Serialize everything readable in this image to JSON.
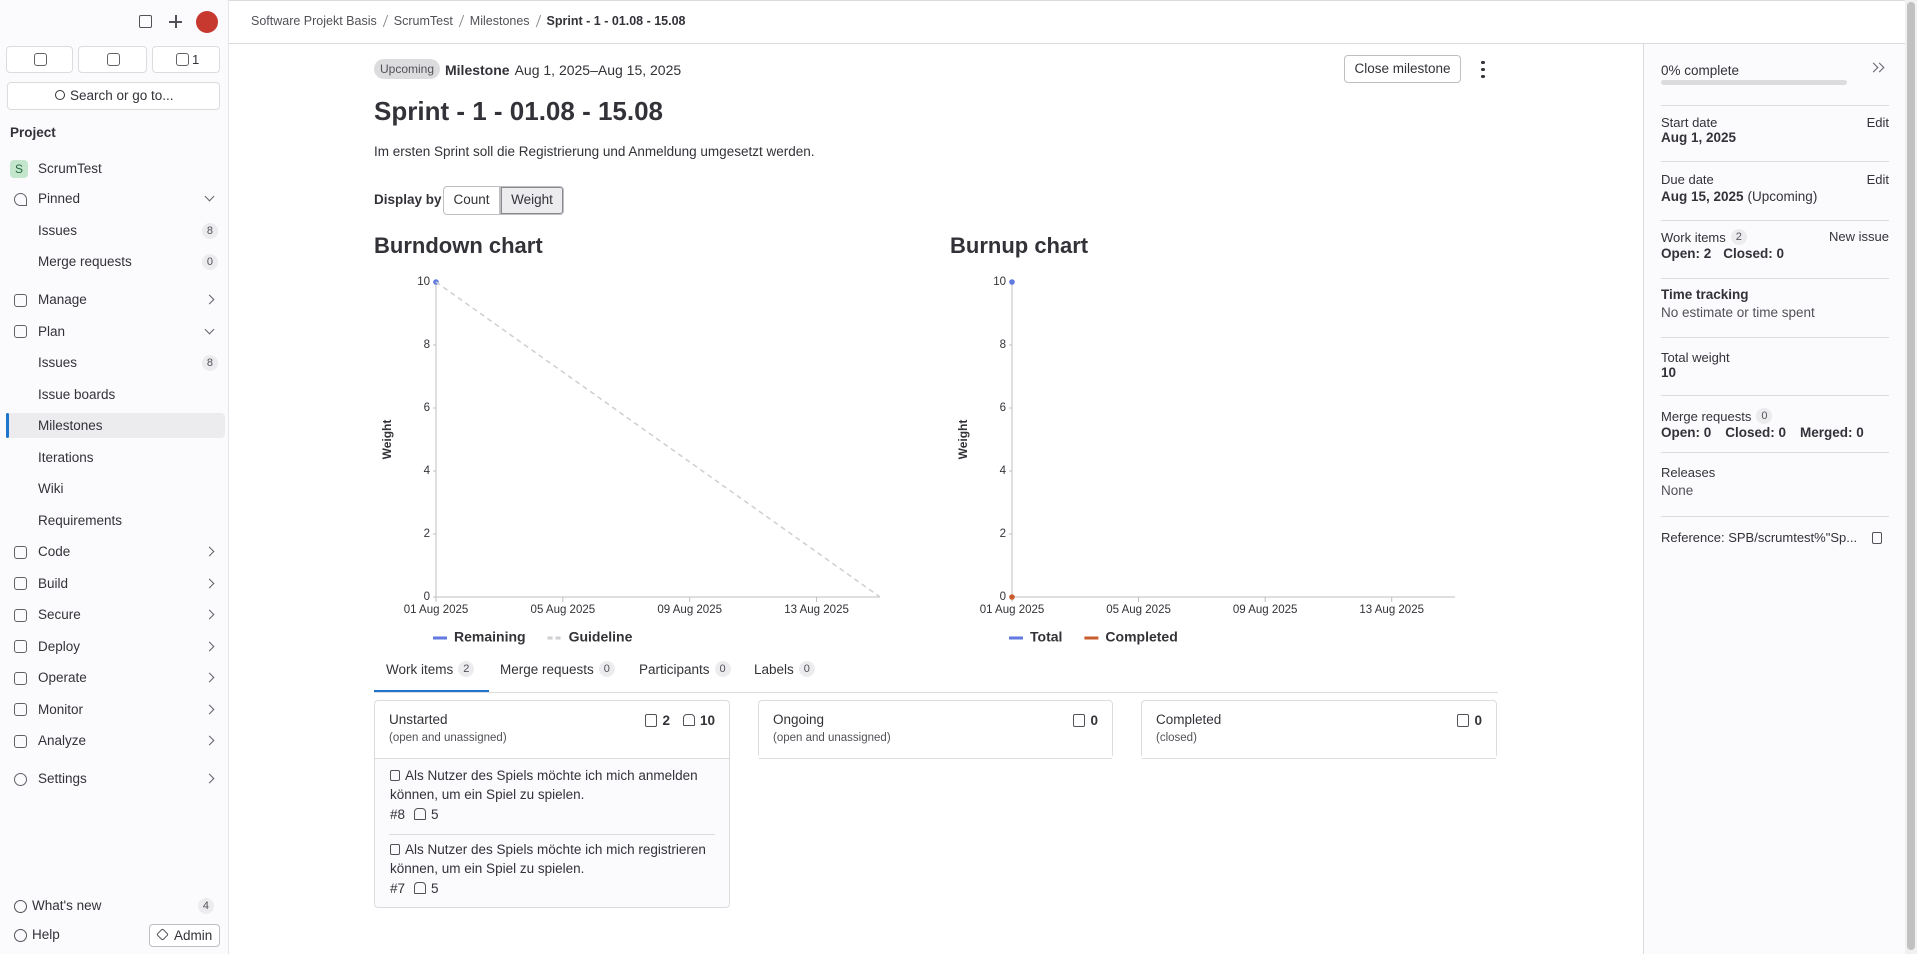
{
  "breadcrumb": [
    "Software Projekt Basis",
    "ScrumTest",
    "Milestones",
    "Sprint - 1 - 01.08 - 15.08"
  ],
  "sidebar": {
    "todo_count": 1,
    "search": "Search or go to...",
    "section": "Project",
    "project": {
      "initial": "S",
      "name": "ScrumTest"
    },
    "pinned": {
      "label": "Pinned",
      "items": [
        {
          "label": "Issues",
          "count": 8
        },
        {
          "label": "Merge requests",
          "count": 0
        }
      ]
    },
    "menu": [
      {
        "label": "Manage"
      },
      {
        "label": "Plan",
        "items": [
          {
            "label": "Issues",
            "count": 8
          },
          {
            "label": "Issue boards"
          },
          {
            "label": "Milestones"
          },
          {
            "label": "Iterations"
          },
          {
            "label": "Wiki"
          },
          {
            "label": "Requirements"
          }
        ]
      },
      {
        "label": "Code"
      },
      {
        "label": "Build"
      },
      {
        "label": "Secure"
      },
      {
        "label": "Deploy"
      },
      {
        "label": "Operate"
      },
      {
        "label": "Monitor"
      },
      {
        "label": "Analyze"
      }
    ],
    "settings": "Settings",
    "whats_new": {
      "label": "What's new",
      "count": 4
    },
    "help": "Help",
    "admin": "Admin"
  },
  "milestone": {
    "status": "Upcoming",
    "label": "Milestone",
    "dates": "Aug 1, 2025–Aug 15, 2025",
    "close_button": "Close milestone",
    "title": "Sprint - 1 - 01.08 - 15.08",
    "description": "Im ersten Sprint soll die Registrierung und Anmeldung umgesetzt werden.",
    "display_by": {
      "label": "Display by",
      "options": [
        "Count",
        "Weight"
      ]
    }
  },
  "chart_data": [
    {
      "type": "line",
      "title": "Burndown chart",
      "y_label": "Weight",
      "xlim": [
        "2025-08-01",
        "2025-08-15"
      ],
      "xticks": [
        {
          "value": "2025-08-01",
          "label": "01 Aug 2025"
        },
        {
          "value": "2025-08-05",
          "label": "05 Aug 2025"
        },
        {
          "value": "2025-08-09",
          "label": "09 Aug 2025"
        },
        {
          "value": "2025-08-13",
          "label": "13 Aug 2025"
        }
      ],
      "ylim": [
        0,
        10
      ],
      "yticks": [
        0,
        2,
        4,
        6,
        8,
        10
      ],
      "series": [
        {
          "name": "Remaining",
          "color": "#617ae2",
          "x": [
            "2025-08-01"
          ],
          "values": [
            10
          ]
        },
        {
          "name": "Guideline",
          "color": "#cfcfd3",
          "dashed": true,
          "x": [
            "2025-08-01",
            "2025-08-15"
          ],
          "values": [
            10,
            0
          ]
        }
      ]
    },
    {
      "type": "line",
      "title": "Burnup chart",
      "y_label": "Weight",
      "xlim": [
        "2025-08-01",
        "2025-08-15"
      ],
      "xticks": [
        {
          "value": "2025-08-01",
          "label": "01 Aug 2025"
        },
        {
          "value": "2025-08-05",
          "label": "05 Aug 2025"
        },
        {
          "value": "2025-08-09",
          "label": "09 Aug 2025"
        },
        {
          "value": "2025-08-13",
          "label": "13 Aug 2025"
        }
      ],
      "ylim": [
        0,
        10
      ],
      "yticks": [
        0,
        2,
        4,
        6,
        8,
        10
      ],
      "series": [
        {
          "name": "Total",
          "color": "#617ae2",
          "x": [
            "2025-08-01"
          ],
          "values": [
            10
          ]
        },
        {
          "name": "Completed",
          "color": "#c95d2e",
          "x": [
            "2025-08-01"
          ],
          "values": [
            0
          ]
        }
      ]
    }
  ],
  "tabs": [
    {
      "label": "Work items",
      "count": 2
    },
    {
      "label": "Merge requests",
      "count": 0
    },
    {
      "label": "Participants",
      "count": 0
    },
    {
      "label": "Labels",
      "count": 0
    }
  ],
  "board": [
    {
      "title": "Unstarted",
      "subtitle": "(open and unassigned)",
      "count": 2,
      "weight": 10,
      "items": [
        {
          "title": "Als Nutzer des Spiels möchte ich mich anmelden können, um ein Spiel zu spielen.",
          "ref": "#8",
          "weight": 5
        },
        {
          "title": "Als Nutzer des Spiels möchte ich mich registrieren können, um ein Spiel zu spielen.",
          "ref": "#7",
          "weight": 5
        }
      ]
    },
    {
      "title": "Ongoing",
      "subtitle": "(open and unassigned)",
      "count": 0
    },
    {
      "title": "Completed",
      "subtitle": "(closed)",
      "count": 0
    }
  ],
  "details": {
    "progress": "0% complete",
    "start_date": {
      "label": "Start date",
      "value": "Aug 1, 2025",
      "action": "Edit"
    },
    "due_date": {
      "label": "Due date",
      "value": "Aug 15, 2025",
      "note": "(Upcoming)",
      "action": "Edit"
    },
    "work_items": {
      "label": "Work items",
      "count": 2,
      "action": "New issue",
      "stats": [
        "Open: 2",
        "Closed: 0"
      ]
    },
    "time_tracking": {
      "label": "Time tracking",
      "value": "No estimate or time spent"
    },
    "total_weight": {
      "label": "Total weight",
      "value": 10
    },
    "merge_requests": {
      "label": "Merge requests",
      "count": 0,
      "stats": [
        "Open: 0",
        "Closed: 0",
        "Merged: 0"
      ]
    },
    "releases": {
      "label": "Releases",
      "value": "None"
    },
    "reference": "Reference: SPB/scrumtest%\"Sp..."
  }
}
